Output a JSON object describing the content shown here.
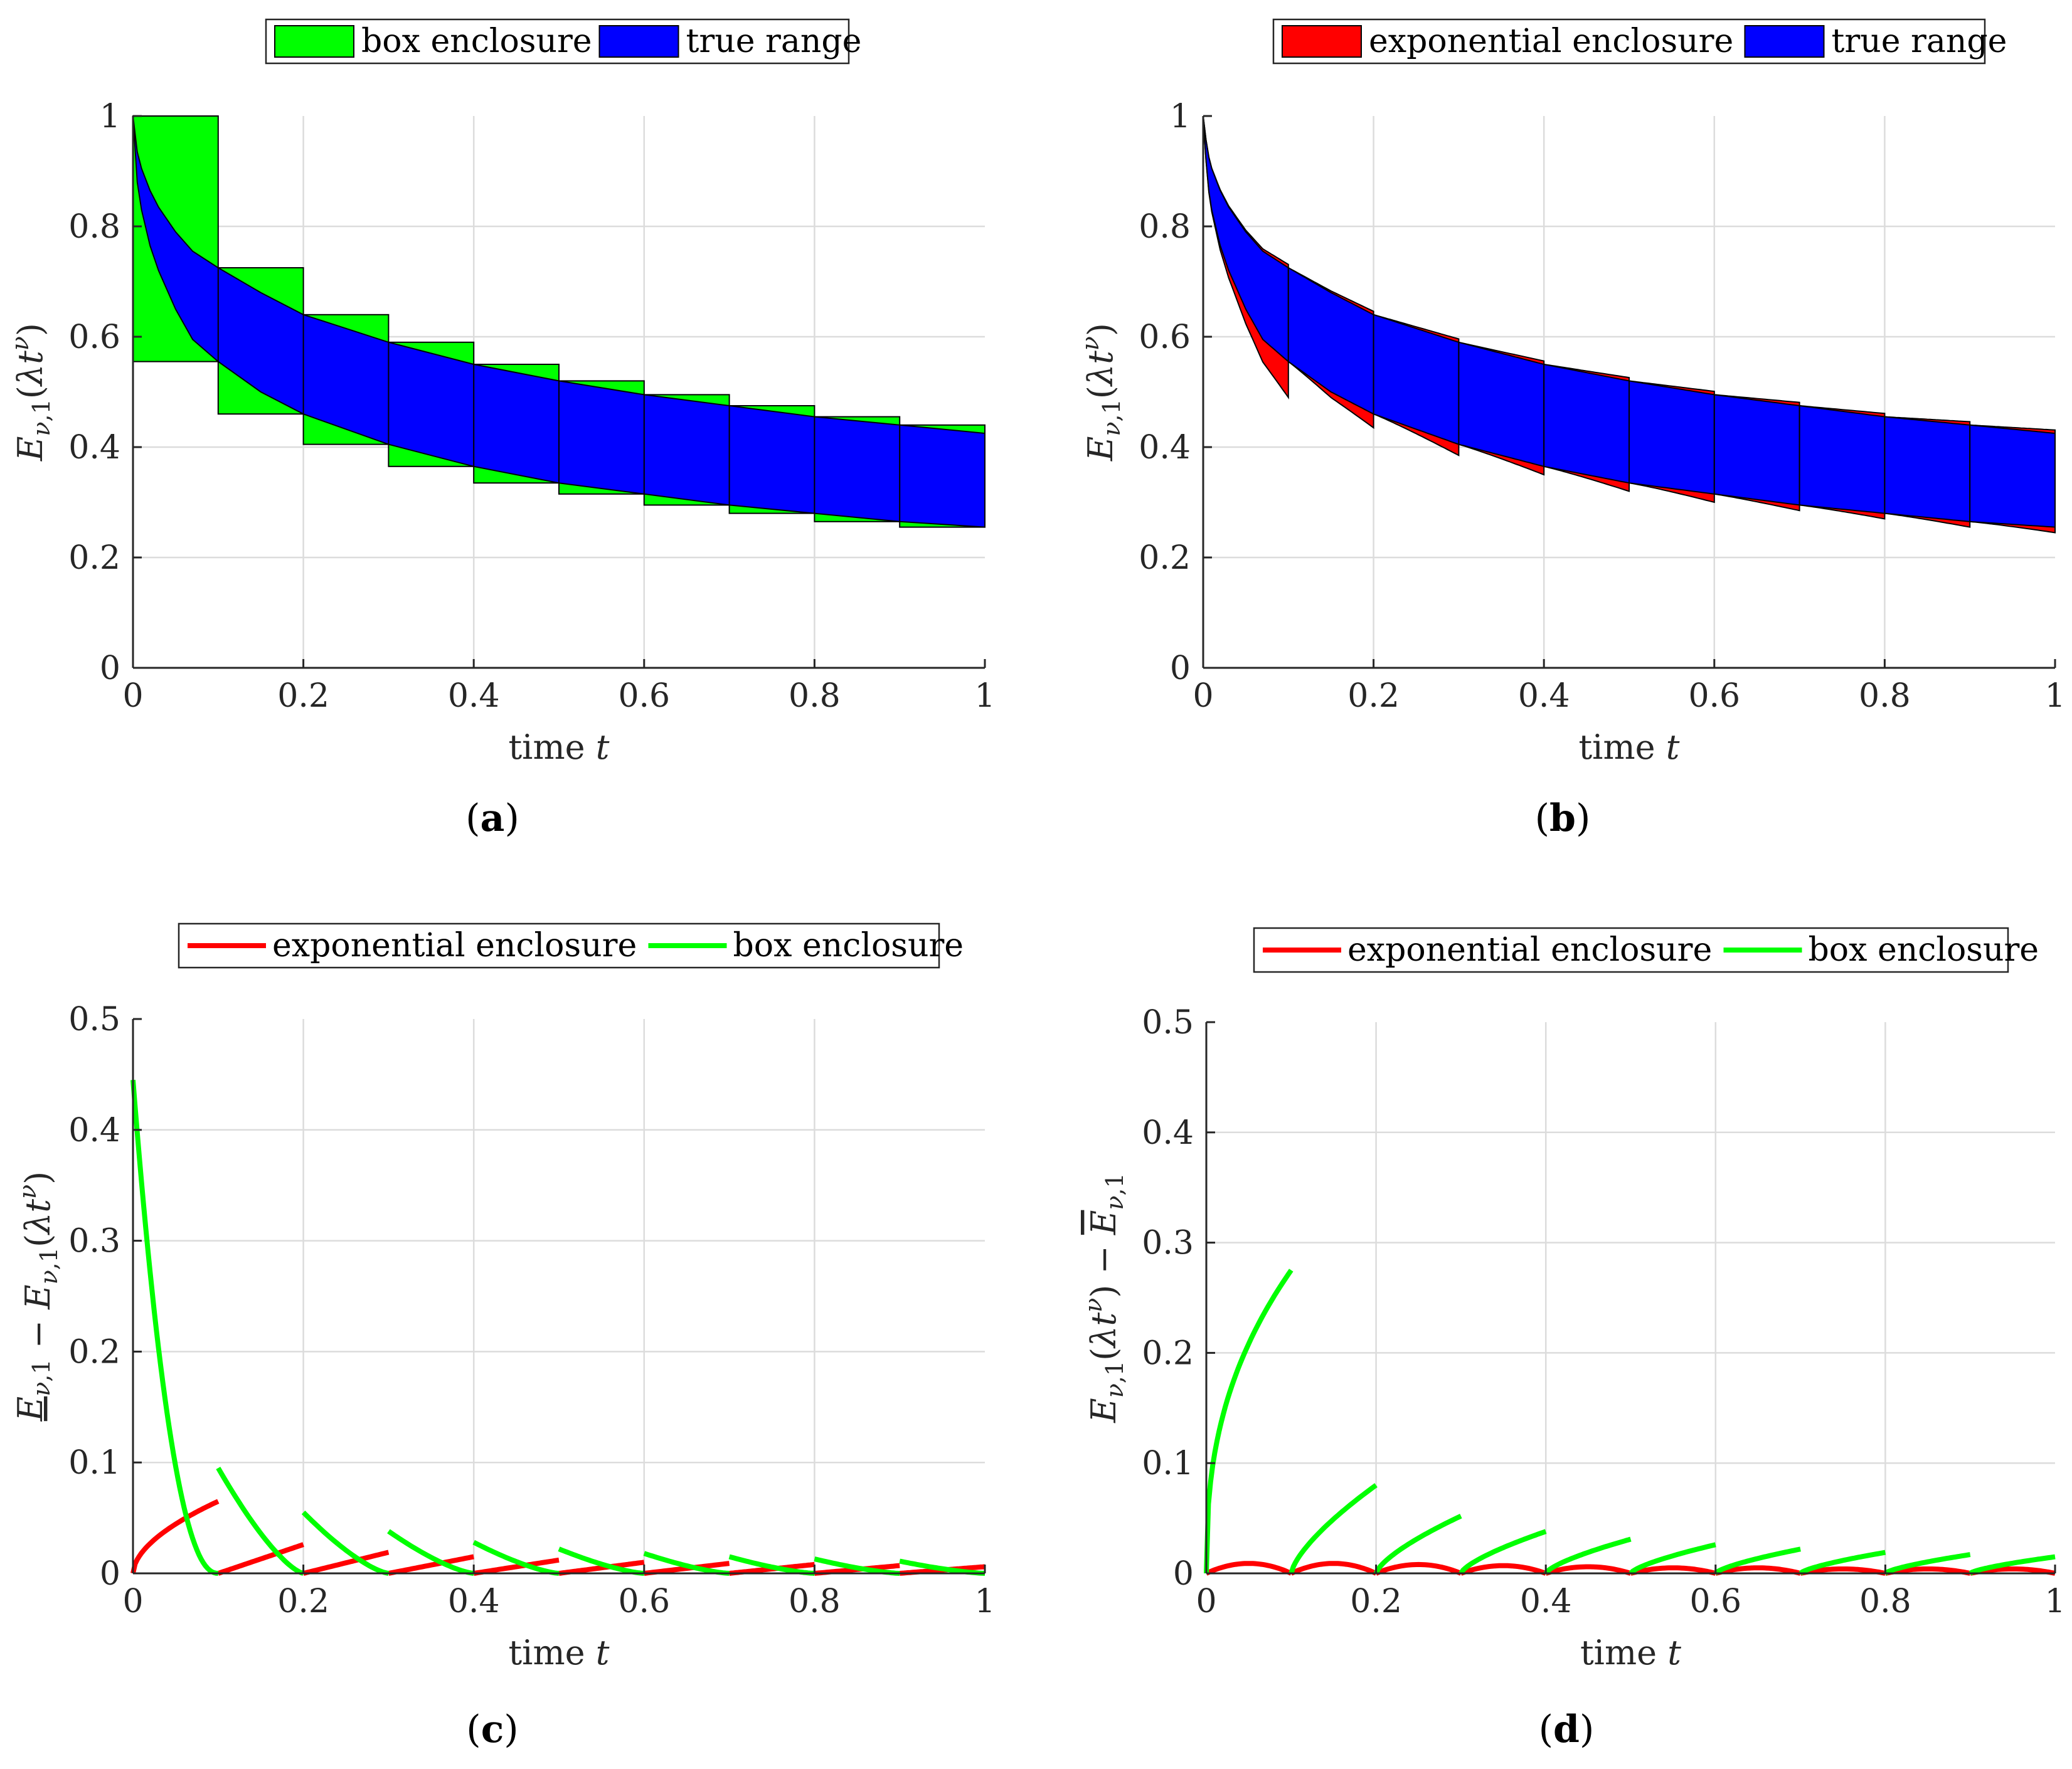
{
  "figure": {
    "panels": [
      {
        "id": "a",
        "caption_letter": "a",
        "legend": [
          {
            "label": "box enclosure",
            "color": "#00ff00",
            "kind": "patch"
          },
          {
            "label": "true range",
            "color": "#0000ff",
            "kind": "patch"
          }
        ]
      },
      {
        "id": "b",
        "caption_letter": "b",
        "legend": [
          {
            "label": "exponential enclosure",
            "color": "#ff0000",
            "kind": "patch"
          },
          {
            "label": "true range",
            "color": "#0000ff",
            "kind": "patch"
          }
        ]
      },
      {
        "id": "c",
        "caption_letter": "c",
        "legend": [
          {
            "label": "exponential enclosure",
            "color": "#ff0000",
            "kind": "line"
          },
          {
            "label": "box enclosure",
            "color": "#00ff00",
            "kind": "line"
          }
        ]
      },
      {
        "id": "d",
        "caption_letter": "d",
        "legend": [
          {
            "label": "exponential enclosure",
            "color": "#ff0000",
            "kind": "line"
          },
          {
            "label": "box enclosure",
            "color": "#00ff00",
            "kind": "line"
          }
        ]
      }
    ]
  },
  "chart_data": [
    {
      "panel": "a",
      "type": "area",
      "title": "",
      "xlabel": "time t",
      "ylabel": "E_{ν,1}(λt^ν)",
      "xlim": [
        0,
        1
      ],
      "ylim": [
        0,
        1
      ],
      "xticks": [
        "0",
        "0.2",
        "0.4",
        "0.6",
        "0.8",
        "1"
      ],
      "yticks": [
        "0",
        "0.2",
        "0.4",
        "0.6",
        "0.8",
        "1"
      ],
      "grid": true,
      "legend_position": "top",
      "true_range": {
        "t": [
          0,
          0.005,
          0.01,
          0.02,
          0.03,
          0.05,
          0.07,
          0.1,
          0.15,
          0.2,
          0.3,
          0.4,
          0.5,
          0.6,
          0.7,
          0.8,
          0.9,
          1.0
        ],
        "upper": [
          1.0,
          0.935,
          0.905,
          0.865,
          0.835,
          0.79,
          0.755,
          0.725,
          0.68,
          0.64,
          0.59,
          0.55,
          0.52,
          0.495,
          0.475,
          0.455,
          0.44,
          0.425
        ],
        "lower": [
          1.0,
          0.88,
          0.83,
          0.765,
          0.72,
          0.65,
          0.595,
          0.555,
          0.5,
          0.46,
          0.405,
          0.365,
          0.335,
          0.315,
          0.295,
          0.28,
          0.265,
          0.255
        ]
      },
      "box_enclosure": [
        {
          "t0": 0.0,
          "t1": 0.1,
          "low": 0.555,
          "high": 1.0
        },
        {
          "t0": 0.1,
          "t1": 0.2,
          "low": 0.46,
          "high": 0.725
        },
        {
          "t0": 0.2,
          "t1": 0.3,
          "low": 0.405,
          "high": 0.64
        },
        {
          "t0": 0.3,
          "t1": 0.4,
          "low": 0.365,
          "high": 0.59
        },
        {
          "t0": 0.4,
          "t1": 0.5,
          "low": 0.335,
          "high": 0.55
        },
        {
          "t0": 0.5,
          "t1": 0.6,
          "low": 0.315,
          "high": 0.52
        },
        {
          "t0": 0.6,
          "t1": 0.7,
          "low": 0.295,
          "high": 0.495
        },
        {
          "t0": 0.7,
          "t1": 0.8,
          "low": 0.28,
          "high": 0.475
        },
        {
          "t0": 0.8,
          "t1": 0.9,
          "low": 0.265,
          "high": 0.455
        },
        {
          "t0": 0.9,
          "t1": 1.0,
          "low": 0.255,
          "high": 0.44
        }
      ]
    },
    {
      "panel": "b",
      "type": "area",
      "title": "",
      "xlabel": "time t",
      "ylabel": "E_{ν,1}(λt^ν)",
      "xlim": [
        0,
        1
      ],
      "ylim": [
        0,
        1
      ],
      "xticks": [
        "0",
        "0.2",
        "0.4",
        "0.6",
        "0.8",
        "1"
      ],
      "yticks": [
        "0",
        "0.2",
        "0.4",
        "0.6",
        "0.8",
        "1"
      ],
      "grid": true,
      "legend_position": "top",
      "exponential_enclosure_bottom_at_segment_end": [
        0.49,
        0.435,
        0.385,
        0.35,
        0.32,
        0.3,
        0.285,
        0.27,
        0.255,
        0.245
      ],
      "exponential_enclosure_top_gap": 0.006
    },
    {
      "panel": "c",
      "type": "line",
      "title": "",
      "xlabel": "time t",
      "ylabel": "E_{ν,1} − E_{ν,1}(λt^ν)  (lower bound, underlined)",
      "xlim": [
        0,
        1
      ],
      "ylim": [
        0,
        0.5
      ],
      "xticks": [
        "0",
        "0.2",
        "0.4",
        "0.6",
        "0.8",
        "1"
      ],
      "yticks": [
        "0",
        "0.1",
        "0.2",
        "0.3",
        "0.4",
        "0.5"
      ],
      "grid": true,
      "legend_position": "top",
      "series": [
        {
          "name": "exponential enclosure",
          "segment_end_values": [
            0.065,
            0.026,
            0.019,
            0.015,
            0.012,
            0.01,
            0.009,
            0.008,
            0.007,
            0.006
          ]
        },
        {
          "name": "box enclosure",
          "segment_start_values": [
            0.445,
            0.095,
            0.055,
            0.038,
            0.028,
            0.022,
            0.018,
            0.015,
            0.013,
            0.011
          ]
        }
      ]
    },
    {
      "panel": "d",
      "type": "line",
      "title": "",
      "xlabel": "time t",
      "ylabel": "E_{ν,1}(λt^ν) − Ē_{ν,1}",
      "xlim": [
        0,
        1
      ],
      "ylim": [
        0,
        0.5
      ],
      "xticks": [
        "0",
        "0.2",
        "0.4",
        "0.6",
        "0.8",
        "1"
      ],
      "yticks": [
        "0",
        "0.1",
        "0.2",
        "0.3",
        "0.4",
        "0.5"
      ],
      "grid": true,
      "legend_position": "top",
      "series": [
        {
          "name": "exponential enclosure",
          "segment_peak_values": [
            0.009,
            0.009,
            0.008,
            0.007,
            0.006,
            0.005,
            0.005,
            0.004,
            0.004,
            0.004
          ]
        },
        {
          "name": "box enclosure",
          "segment_end_values": [
            0.275,
            0.08,
            0.052,
            0.038,
            0.031,
            0.026,
            0.022,
            0.019,
            0.017,
            0.015
          ]
        }
      ]
    }
  ]
}
